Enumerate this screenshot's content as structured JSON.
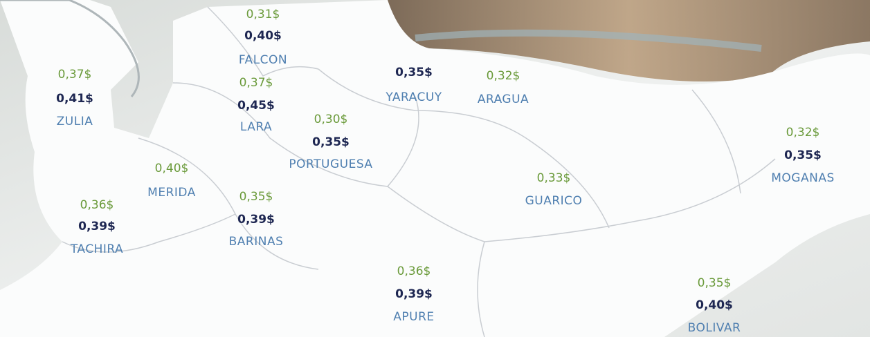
{
  "regions": [
    {
      "name": "FALCON",
      "green_price": "0,31$",
      "dark_price": "0,40$"
    },
    {
      "name": "ZULIA",
      "green_price": "0,37$",
      "dark_price": "0,41$"
    },
    {
      "name": "LARA",
      "green_price": "0,37$",
      "dark_price": "0,45$"
    },
    {
      "name": "YARACUY",
      "dark_price": "0,35$"
    },
    {
      "name": "ARAGUA",
      "green_price": "0,32$"
    },
    {
      "name": "PORTUGUESA",
      "green_price": "0,30$",
      "dark_price": "0,35$"
    },
    {
      "name": "MERIDA",
      "green_price": "0,40$"
    },
    {
      "name": "TACHIRA",
      "green_price": "0,36$",
      "dark_price": "0,39$"
    },
    {
      "name": "BARINAS",
      "green_price": "0,35$",
      "dark_price": "0,39$"
    },
    {
      "name": "GUARICO",
      "green_price": "0,33$"
    },
    {
      "name": "MOGANAS",
      "green_price": "0,32$",
      "dark_price": "0,35$"
    },
    {
      "name": "APURE",
      "green_price": "0,36$",
      "dark_price": "0,39$"
    },
    {
      "name": "BOLIVAR",
      "green_price": "0,35$",
      "dark_price": "0,40$"
    }
  ]
}
